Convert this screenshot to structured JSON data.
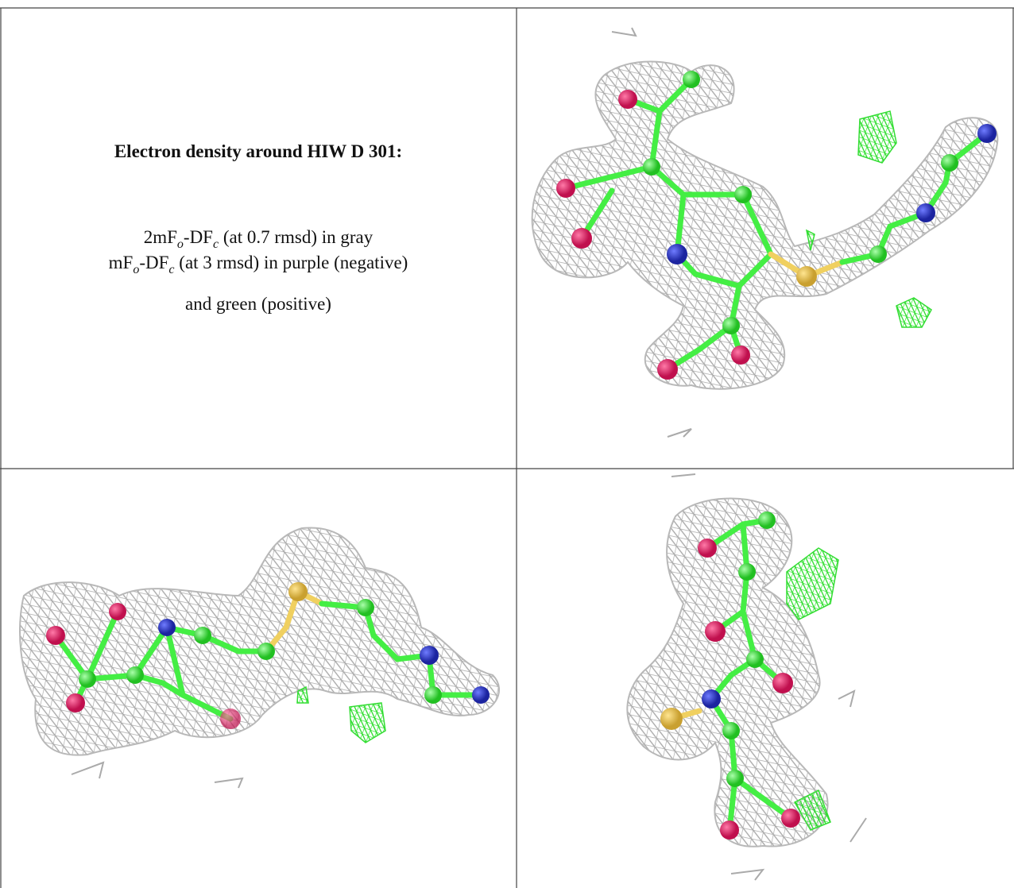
{
  "title": "Electron density around HIW D 301:",
  "legend": {
    "line1": [
      "2mF",
      "o",
      "-DF",
      "c",
      " (at 0.7 rmsd) in gray"
    ],
    "line2": [
      "mF",
      "o",
      "-DF",
      "c",
      " (at 3 rmsd) in purple (negative)"
    ],
    "line3": [
      "and green (positive)"
    ]
  }
}
